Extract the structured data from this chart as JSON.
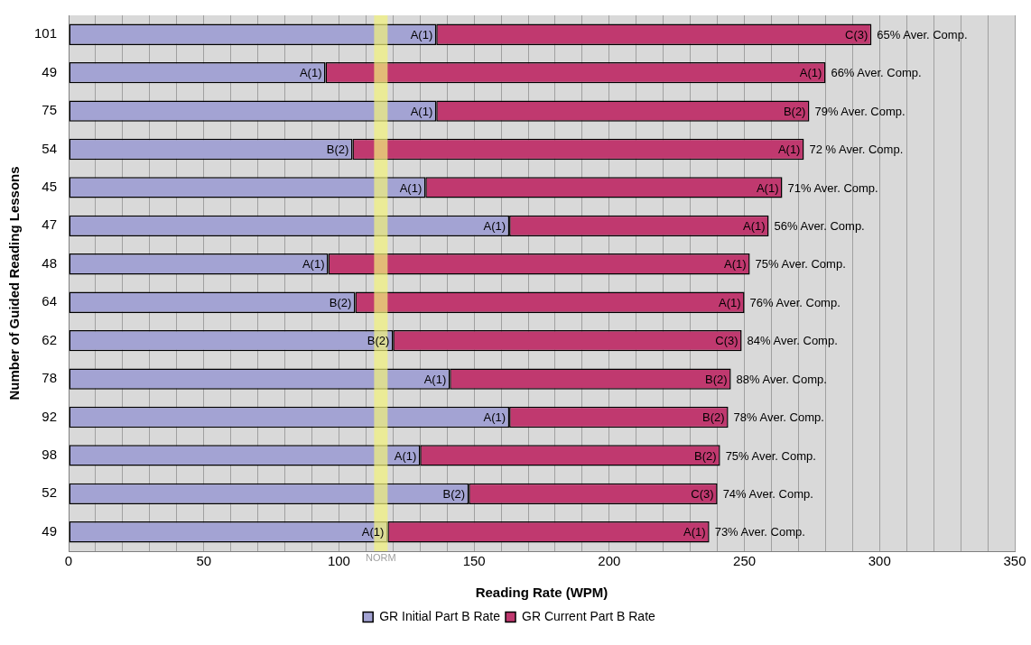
{
  "chart_data": {
    "type": "bar",
    "orientation": "horizontal",
    "stacked": true,
    "xlabel": "Reading Rate (WPM)",
    "ylabel": "Number of Guided Reading Lessons",
    "categories": [
      "101",
      "49",
      "75",
      "54",
      "45",
      "47",
      "48",
      "64",
      "62",
      "78",
      "92",
      "98",
      "52",
      "49"
    ],
    "series": [
      {
        "name": "GR Initial Part B Rate",
        "color": "#a3a3d3",
        "values": [
          136,
          95,
          136,
          105,
          132,
          163,
          96,
          106,
          120,
          141,
          163,
          130,
          148,
          118
        ],
        "value_labels": [
          "A(1)",
          "A(1)",
          "A(1)",
          "B(2)",
          "A(1)",
          "A(1)",
          "A(1)",
          "B(2)",
          "B(2)",
          "A(1)",
          "A(1)",
          "A(1)",
          "B(2)",
          "A(1)"
        ]
      },
      {
        "name": "GR Current Part B Rate",
        "color": "#c0396f",
        "values": [
          161,
          185,
          138,
          167,
          132,
          96,
          156,
          144,
          129,
          104,
          81,
          111,
          92,
          119
        ],
        "value_labels": [
          "C(3)",
          "A(1)",
          "B(2)",
          "A(1)",
          "A(1)",
          "A(1)",
          "A(1)",
          "A(1)",
          "C(3)",
          "B(2)",
          "B(2)",
          "B(2)",
          "C(3)",
          "A(1)"
        ]
      }
    ],
    "xlim": [
      0,
      350
    ],
    "xticks": [
      0,
      {
        "value": 10,
        "label": null
      },
      {
        "value": 20,
        "label": null
      },
      {
        "value": 30,
        "label": null
      },
      {
        "value": 40,
        "label": null
      },
      50,
      {
        "value": 60,
        "label": null
      },
      {
        "value": 70,
        "label": null
      },
      {
        "value": 80,
        "label": null
      },
      {
        "value": 90,
        "label": null
      },
      100,
      {
        "value": 110,
        "label": null
      },
      {
        "value": 120,
        "label": null
      },
      {
        "value": 130,
        "label": null
      },
      {
        "value": 140,
        "label": null
      },
      150,
      {
        "value": 160,
        "label": null
      },
      {
        "value": 170,
        "label": null
      },
      {
        "value": 180,
        "label": null
      },
      {
        "value": 190,
        "label": null
      },
      200,
      {
        "value": 210,
        "label": null
      },
      {
        "value": 220,
        "label": null
      },
      {
        "value": 230,
        "label": null
      },
      {
        "value": 240,
        "label": null
      },
      250,
      {
        "value": 260,
        "label": null
      },
      {
        "value": 270,
        "label": null
      },
      {
        "value": 280,
        "label": null
      },
      {
        "value": 290,
        "label": null
      },
      300,
      {
        "value": 310,
        "label": null
      },
      {
        "value": 320,
        "label": null
      },
      {
        "value": 330,
        "label": null
      },
      {
        "value": 340,
        "label": null
      },
      350
    ],
    "bands": [
      {
        "axis": "x",
        "from": 113,
        "to": 118,
        "label": "NORM",
        "color": "#f2f27a"
      }
    ],
    "annotations": [
      "65% Aver. Comp.",
      "66% Aver. Comp.",
      "79% Aver. Comp.",
      "72 % Aver. Comp.",
      "71% Aver. Comp.",
      "56% Aver. Comp.",
      "75% Aver. Comp.",
      "76% Aver. Comp.",
      "84% Aver. Comp.",
      "88% Aver. Comp.",
      "78% Aver. Comp.",
      "75% Aver. Comp.",
      "74% Aver. Comp.",
      "73% Aver. Comp."
    ],
    "grid": "x",
    "legend": "bottom"
  }
}
